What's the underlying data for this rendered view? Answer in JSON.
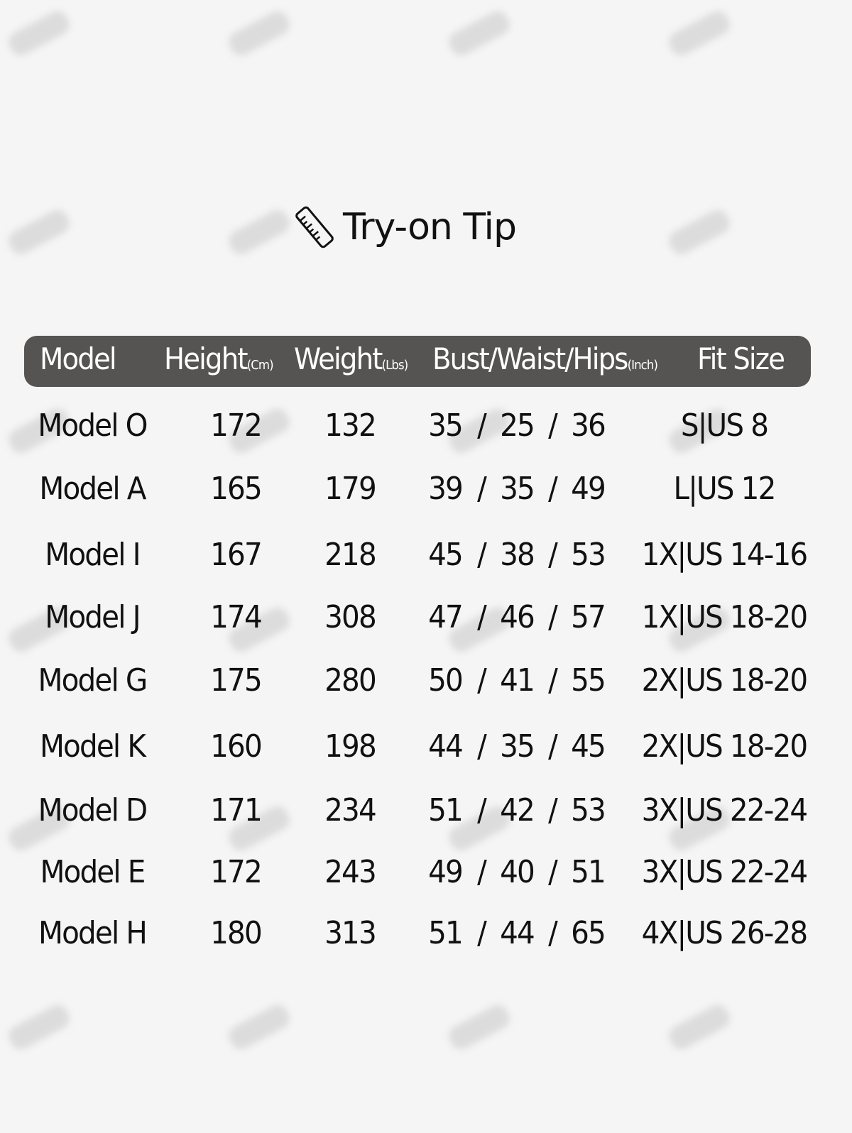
{
  "title": {
    "text": "Try-on Tip",
    "icon": "ruler-icon"
  },
  "header": {
    "model": "Model",
    "height": "Height",
    "height_unit": "(Cm)",
    "weight": "Weight",
    "weight_unit": "(Lbs)",
    "bwh": "Bust/Waist/Hips",
    "bwh_unit": "(Inch)",
    "fit": "Fit Size"
  },
  "colors": {
    "header_bg": "#555452",
    "background": "#f5f5f5"
  },
  "rows": [
    {
      "model": "Model O",
      "height": "172",
      "weight": "132",
      "bust": "35",
      "waist": "25",
      "hips": "36",
      "fit": "S|US 8"
    },
    {
      "model": "Model A",
      "height": "165",
      "weight": "179",
      "bust": "39",
      "waist": "35",
      "hips": "49",
      "fit": "L|US 12"
    },
    {
      "model": "Model I",
      "height": "167",
      "weight": "218",
      "bust": "45",
      "waist": "38",
      "hips": "53",
      "fit": "1X|US 14-16"
    },
    {
      "model": "Model J",
      "height": "174",
      "weight": "308",
      "bust": "47",
      "waist": "46",
      "hips": "57",
      "fit": "1X|US 18-20"
    },
    {
      "model": "Model G",
      "height": "175",
      "weight": "280",
      "bust": "50",
      "waist": "41",
      "hips": "55",
      "fit": "2X|US 18-20"
    },
    {
      "model": "Model K",
      "height": "160",
      "weight": "198",
      "bust": "44",
      "waist": "35",
      "hips": "45",
      "fit": "2X|US 18-20"
    },
    {
      "model": "Model D",
      "height": "171",
      "weight": "234",
      "bust": "51",
      "waist": "42",
      "hips": "53",
      "fit": "3X|US 22-24"
    },
    {
      "model": "Model E",
      "height": "172",
      "weight": "243",
      "bust": "49",
      "waist": "40",
      "hips": "51",
      "fit": "3X|US 22-24"
    },
    {
      "model": "Model H",
      "height": "180",
      "weight": "313",
      "bust": "51",
      "waist": "44",
      "hips": "65",
      "fit": "4X|US 26-28"
    }
  ],
  "separator": "/"
}
